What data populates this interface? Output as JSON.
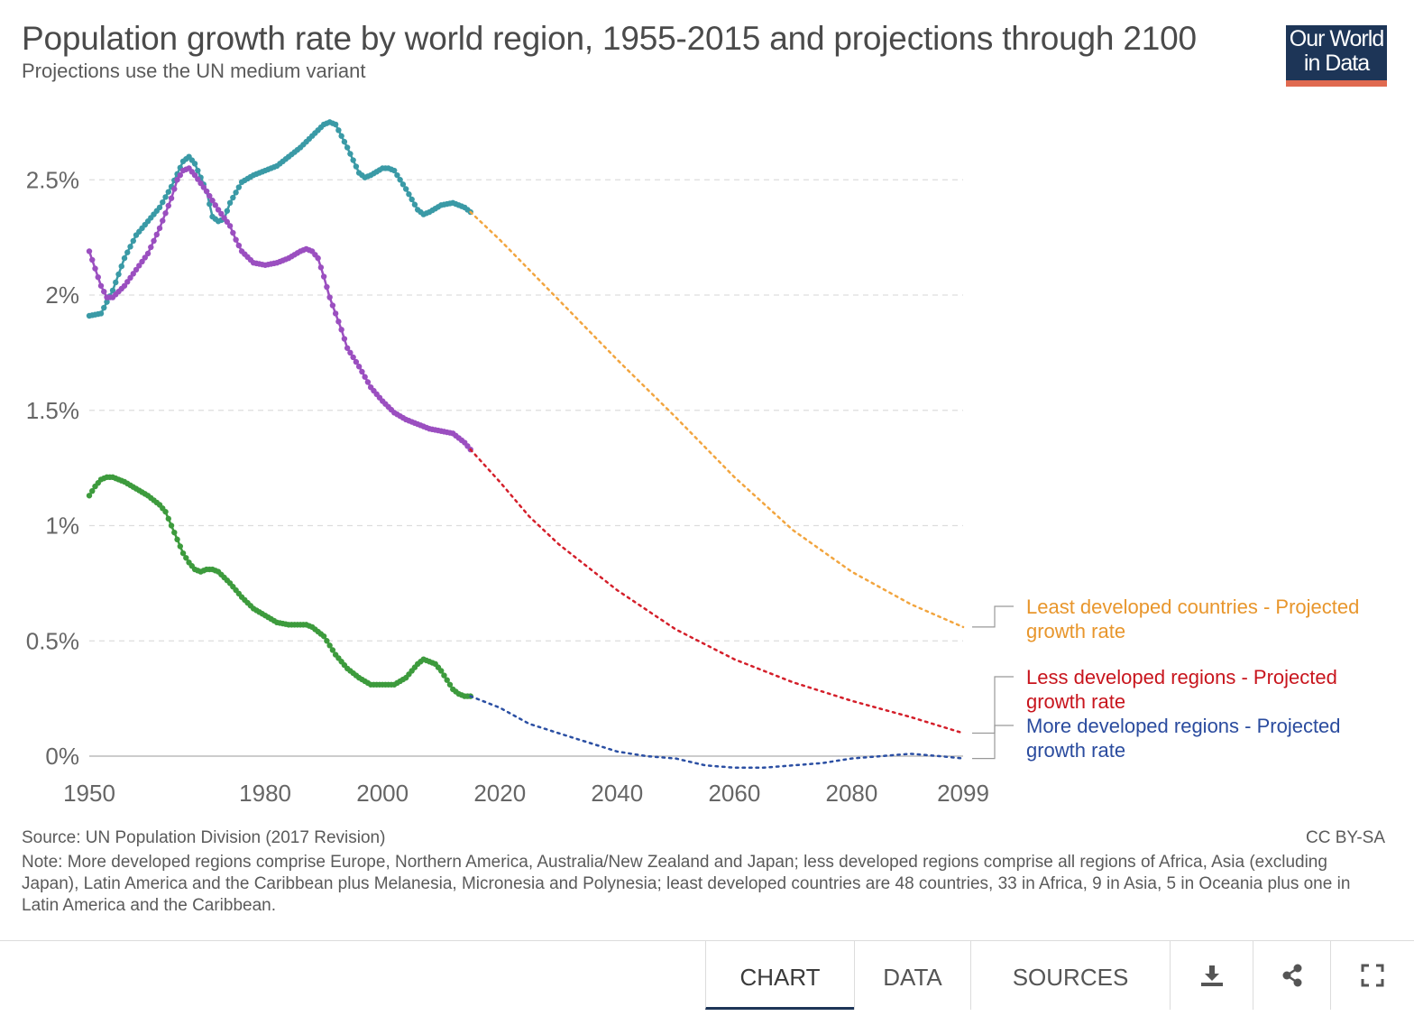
{
  "header": {
    "title": "Population growth rate by world region, 1955-2015 and projections through 2100",
    "subtitle": "Projections use the UN medium variant",
    "logo_line1": "Our World",
    "logo_line2": "in Data"
  },
  "footer": {
    "source": "Source: UN Population Division (2017 Revision)",
    "license": "CC BY-SA",
    "note": "Note: More developed regions comprise Europe, Northern America, Australia/New Zealand and Japan; less developed regions comprise all regions of Africa, Asia (excluding Japan), Latin America and the Caribbean plus Melanesia, Micronesia and Polynesia; least developed countries are 48 countries, 33 in Africa, 9 in Asia, 5 in Oceania plus one in Latin America and the Caribbean."
  },
  "tabs": {
    "chart": "CHART",
    "data": "DATA",
    "sources": "SOURCES"
  },
  "icons": {
    "download": "download-icon",
    "share": "share-icon",
    "fullscreen": "fullscreen-icon"
  },
  "chart_data": {
    "type": "line",
    "title": "Population growth rate by world region, 1955-2015 and projections through 2100",
    "xlim": [
      1950,
      2099
    ],
    "ylim": [
      0,
      2.8
    ],
    "x_ticks": [
      1950,
      1980,
      2000,
      2020,
      2040,
      2060,
      2080,
      2099
    ],
    "y_ticks": [
      0,
      0.5,
      1,
      1.5,
      2,
      2.5
    ],
    "y_tick_labels": [
      "0%",
      "0.5%",
      "1%",
      "1.5%",
      "2%",
      "2.5%"
    ],
    "grid": "horizontal dashed",
    "series": [
      {
        "name": "Least developed countries",
        "color": "#3a9aa6",
        "style": "solid-with-markers",
        "points": [
          [
            1950,
            1.91
          ],
          [
            1952,
            1.92
          ],
          [
            1954,
            2.02
          ],
          [
            1956,
            2.16
          ],
          [
            1958,
            2.26
          ],
          [
            1960,
            2.32
          ],
          [
            1962,
            2.38
          ],
          [
            1964,
            2.47
          ],
          [
            1966,
            2.58
          ],
          [
            1967,
            2.6
          ],
          [
            1968,
            2.57
          ],
          [
            1970,
            2.45
          ],
          [
            1971,
            2.34
          ],
          [
            1972,
            2.32
          ],
          [
            1973,
            2.33
          ],
          [
            1974,
            2.4
          ],
          [
            1976,
            2.49
          ],
          [
            1978,
            2.52
          ],
          [
            1980,
            2.54
          ],
          [
            1982,
            2.56
          ],
          [
            1984,
            2.6
          ],
          [
            1986,
            2.64
          ],
          [
            1988,
            2.69
          ],
          [
            1990,
            2.74
          ],
          [
            1991,
            2.75
          ],
          [
            1992,
            2.74
          ],
          [
            1994,
            2.64
          ],
          [
            1996,
            2.53
          ],
          [
            1997,
            2.51
          ],
          [
            1998,
            2.52
          ],
          [
            2000,
            2.55
          ],
          [
            2001,
            2.55
          ],
          [
            2002,
            2.54
          ],
          [
            2004,
            2.46
          ],
          [
            2006,
            2.37
          ],
          [
            2007,
            2.35
          ],
          [
            2008,
            2.36
          ],
          [
            2010,
            2.39
          ],
          [
            2012,
            2.4
          ],
          [
            2014,
            2.38
          ],
          [
            2015,
            2.36
          ]
        ]
      },
      {
        "name": "Less developed regions",
        "color": "#9b4fc0",
        "style": "solid-with-markers",
        "points": [
          [
            1950,
            2.19
          ],
          [
            1952,
            2.04
          ],
          [
            1953,
            1.99
          ],
          [
            1954,
            1.99
          ],
          [
            1956,
            2.04
          ],
          [
            1958,
            2.11
          ],
          [
            1960,
            2.18
          ],
          [
            1962,
            2.29
          ],
          [
            1964,
            2.42
          ],
          [
            1965,
            2.5
          ],
          [
            1966,
            2.54
          ],
          [
            1967,
            2.55
          ],
          [
            1968,
            2.52
          ],
          [
            1970,
            2.45
          ],
          [
            1972,
            2.37
          ],
          [
            1974,
            2.3
          ],
          [
            1975,
            2.24
          ],
          [
            1976,
            2.19
          ],
          [
            1978,
            2.14
          ],
          [
            1980,
            2.13
          ],
          [
            1982,
            2.14
          ],
          [
            1984,
            2.16
          ],
          [
            1986,
            2.19
          ],
          [
            1987,
            2.2
          ],
          [
            1988,
            2.19
          ],
          [
            1989,
            2.16
          ],
          [
            1990,
            2.08
          ],
          [
            1991,
            1.99
          ],
          [
            1992,
            1.92
          ],
          [
            1993,
            1.85
          ],
          [
            1994,
            1.77
          ],
          [
            1996,
            1.69
          ],
          [
            1998,
            1.6
          ],
          [
            2000,
            1.54
          ],
          [
            2002,
            1.49
          ],
          [
            2004,
            1.46
          ],
          [
            2006,
            1.44
          ],
          [
            2008,
            1.42
          ],
          [
            2010,
            1.41
          ],
          [
            2012,
            1.4
          ],
          [
            2014,
            1.36
          ],
          [
            2015,
            1.33
          ]
        ]
      },
      {
        "name": "More developed regions",
        "color": "#3d9b3d",
        "style": "solid-with-markers",
        "points": [
          [
            1950,
            1.13
          ],
          [
            1951,
            1.17
          ],
          [
            1952,
            1.2
          ],
          [
            1953,
            1.21
          ],
          [
            1954,
            1.21
          ],
          [
            1956,
            1.19
          ],
          [
            1958,
            1.16
          ],
          [
            1960,
            1.13
          ],
          [
            1962,
            1.09
          ],
          [
            1963,
            1.06
          ],
          [
            1964,
            1.0
          ],
          [
            1965,
            0.94
          ],
          [
            1966,
            0.88
          ],
          [
            1967,
            0.84
          ],
          [
            1968,
            0.81
          ],
          [
            1969,
            0.8
          ],
          [
            1970,
            0.81
          ],
          [
            1971,
            0.81
          ],
          [
            1972,
            0.8
          ],
          [
            1974,
            0.75
          ],
          [
            1976,
            0.69
          ],
          [
            1978,
            0.64
          ],
          [
            1980,
            0.61
          ],
          [
            1982,
            0.58
          ],
          [
            1984,
            0.57
          ],
          [
            1986,
            0.57
          ],
          [
            1987,
            0.57
          ],
          [
            1988,
            0.56
          ],
          [
            1990,
            0.52
          ],
          [
            1992,
            0.44
          ],
          [
            1994,
            0.38
          ],
          [
            1996,
            0.34
          ],
          [
            1998,
            0.31
          ],
          [
            2000,
            0.31
          ],
          [
            2002,
            0.31
          ],
          [
            2004,
            0.34
          ],
          [
            2006,
            0.4
          ],
          [
            2007,
            0.42
          ],
          [
            2008,
            0.41
          ],
          [
            2009,
            0.4
          ],
          [
            2010,
            0.37
          ],
          [
            2011,
            0.33
          ],
          [
            2012,
            0.29
          ],
          [
            2013,
            0.27
          ],
          [
            2014,
            0.26
          ],
          [
            2015,
            0.26
          ]
        ]
      },
      {
        "name": "Least developed countries - Projected growth rate",
        "color": "#f2a53f",
        "style": "dotted",
        "points": [
          [
            2015,
            2.36
          ],
          [
            2020,
            2.24
          ],
          [
            2030,
            1.98
          ],
          [
            2040,
            1.72
          ],
          [
            2050,
            1.47
          ],
          [
            2060,
            1.21
          ],
          [
            2070,
            0.98
          ],
          [
            2080,
            0.8
          ],
          [
            2090,
            0.66
          ],
          [
            2099,
            0.56
          ]
        ]
      },
      {
        "name": "Less developed regions - Projected growth rate",
        "color": "#d41f2a",
        "style": "dotted",
        "points": [
          [
            2015,
            1.33
          ],
          [
            2020,
            1.19
          ],
          [
            2025,
            1.04
          ],
          [
            2030,
            0.92
          ],
          [
            2040,
            0.72
          ],
          [
            2050,
            0.55
          ],
          [
            2060,
            0.42
          ],
          [
            2070,
            0.32
          ],
          [
            2080,
            0.24
          ],
          [
            2090,
            0.17
          ],
          [
            2099,
            0.1
          ]
        ]
      },
      {
        "name": "More developed regions - Projected growth rate",
        "color": "#2b4fa3",
        "style": "dotted",
        "points": [
          [
            2015,
            0.26
          ],
          [
            2020,
            0.21
          ],
          [
            2025,
            0.14
          ],
          [
            2030,
            0.1
          ],
          [
            2035,
            0.06
          ],
          [
            2040,
            0.02
          ],
          [
            2045,
            0.0
          ],
          [
            2050,
            -0.01
          ],
          [
            2055,
            -0.04
          ],
          [
            2060,
            -0.05
          ],
          [
            2065,
            -0.05
          ],
          [
            2070,
            -0.04
          ],
          [
            2075,
            -0.03
          ],
          [
            2080,
            -0.01
          ],
          [
            2085,
            0.0
          ],
          [
            2090,
            0.01
          ],
          [
            2095,
            0.0
          ],
          [
            2099,
            -0.01
          ]
        ]
      }
    ],
    "legend": [
      {
        "line1": "Least developed countries - Projected",
        "line2": "growth rate",
        "color": "#e8962c"
      },
      {
        "line1": "Less developed regions - Projected",
        "line2": "growth rate",
        "color": "#c8151d"
      },
      {
        "line1": "More developed regions - Projected",
        "line2": "growth rate",
        "color": "#2a4b9e"
      }
    ]
  }
}
